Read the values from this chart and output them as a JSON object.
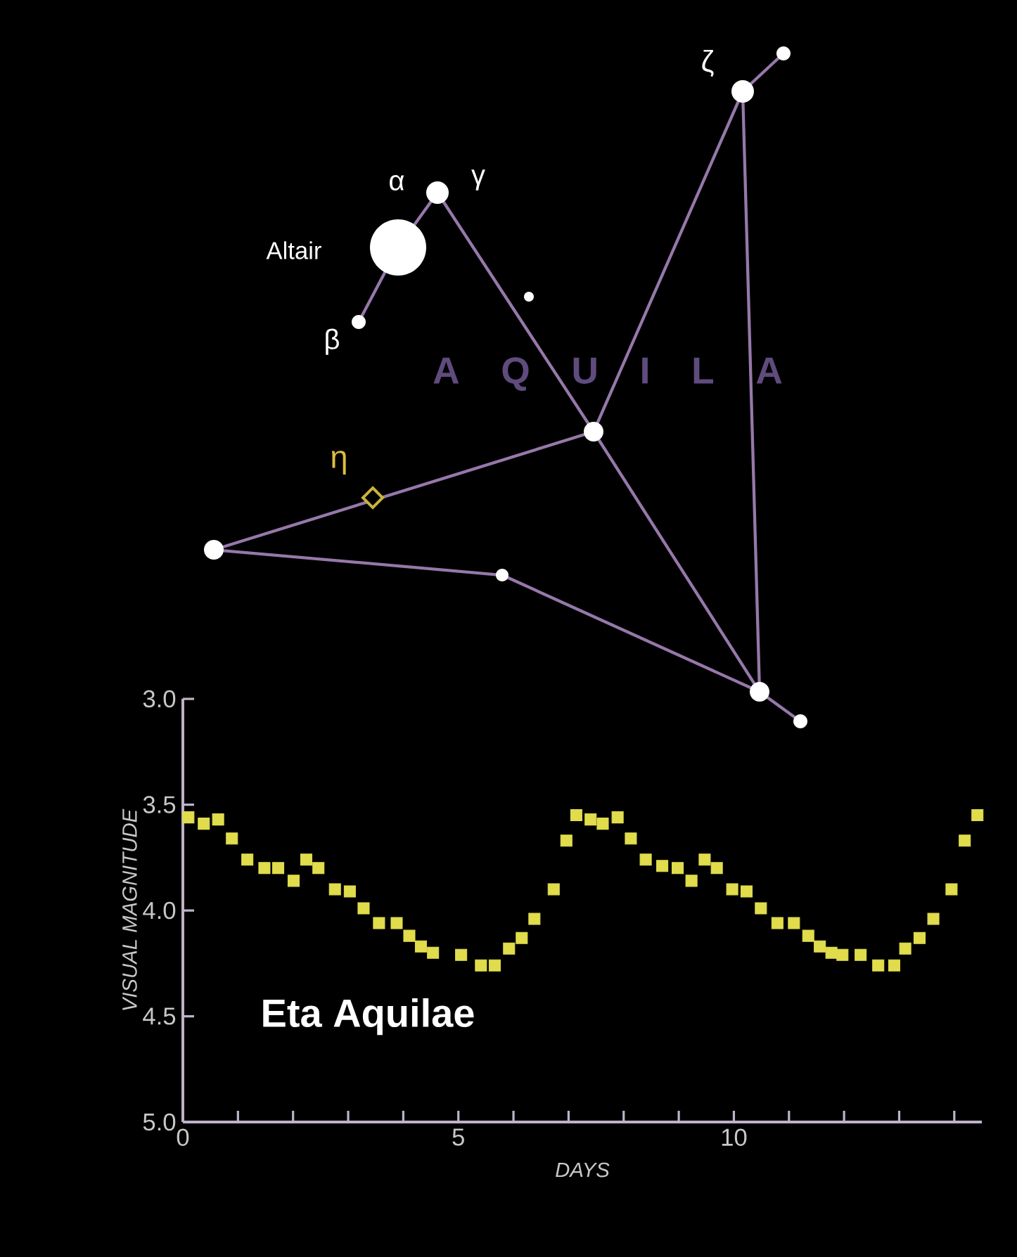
{
  "chart_data": {
    "type": "scatter",
    "title": "Eta Aquilae",
    "xlabel": "DAYS",
    "ylabel": "VISUAL  MAGNITUDE",
    "annotations": [
      "Altair",
      "α",
      "β",
      "γ",
      "ζ",
      "η",
      "A Q U I L A"
    ],
    "x": [
      0.1,
      0.38,
      0.64,
      0.89,
      1.17,
      1.48,
      1.73,
      2.01,
      2.24,
      2.46,
      2.76,
      3.03,
      3.28,
      3.56,
      3.88,
      4.11,
      4.32,
      4.54,
      5.05,
      5.41,
      5.66,
      5.92,
      6.15,
      6.38,
      6.73,
      6.96,
      7.14,
      7.4,
      7.62,
      7.89,
      8.13,
      8.4,
      8.7,
      8.98,
      9.23,
      9.47,
      9.69,
      9.97,
      10.23,
      10.49,
      10.79,
      11.09,
      11.35,
      11.56,
      11.77,
      11.97,
      12.3,
      12.62,
      12.91,
      13.11,
      13.37,
      13.62,
      13.95,
      14.19,
      14.42
    ],
    "values": [
      3.56,
      3.59,
      3.57,
      3.66,
      3.76,
      3.8,
      3.8,
      3.86,
      3.76,
      3.8,
      3.9,
      3.91,
      3.99,
      4.06,
      4.06,
      4.12,
      4.17,
      4.2,
      4.21,
      4.26,
      4.26,
      4.18,
      4.13,
      4.04,
      3.9,
      3.67,
      3.55,
      3.57,
      3.59,
      3.56,
      3.66,
      3.76,
      3.79,
      3.8,
      3.86,
      3.76,
      3.8,
      3.9,
      3.91,
      3.99,
      4.06,
      4.06,
      4.12,
      4.17,
      4.2,
      4.21,
      4.21,
      4.26,
      4.26,
      4.18,
      4.13,
      4.04,
      3.9,
      3.67,
      3.55
    ],
    "color": "#e0dc4c",
    "marker": "square",
    "xlim": [
      0,
      14.5
    ],
    "ylim": [
      5.0,
      3.0
    ],
    "xticks": [
      0,
      {
        "value": 1,
        "label": null
      },
      {
        "value": 2,
        "label": null
      },
      {
        "value": 3,
        "label": null
      },
      {
        "value": 4,
        "label": null
      },
      5,
      {
        "value": 6,
        "label": null
      },
      {
        "value": 7,
        "label": null
      },
      {
        "value": 8,
        "label": null
      },
      {
        "value": 9,
        "label": null
      },
      10,
      {
        "value": 11,
        "label": null
      },
      {
        "value": 12,
        "label": null
      },
      {
        "value": 13,
        "label": null
      },
      {
        "value": 14,
        "label": null
      }
    ],
    "yticks": [
      {
        "value": 3.0,
        "label": "3.0"
      },
      {
        "value": 3.5,
        "label": "3.5"
      },
      {
        "value": 4.0,
        "label": "4.0"
      },
      {
        "value": 4.5,
        "label": "4.5"
      },
      {
        "value": 5.0,
        "label": "5.0"
      }
    ]
  }
}
